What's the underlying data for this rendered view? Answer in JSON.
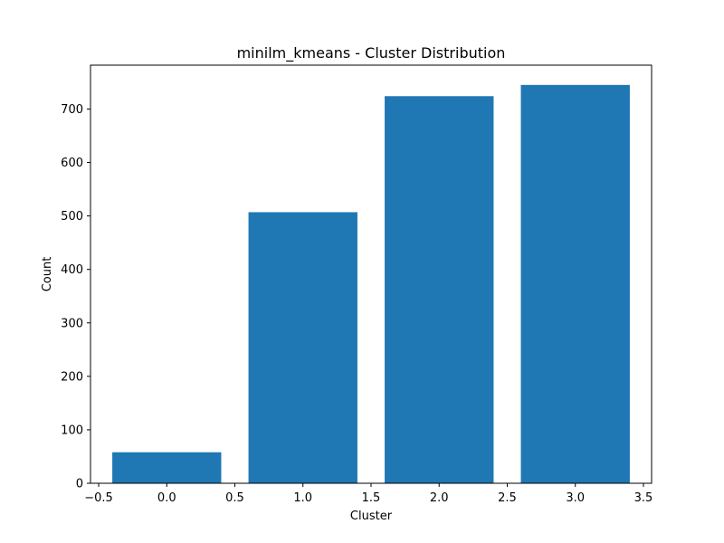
{
  "chart_data": {
    "type": "bar",
    "title": "minilm_kmeans - Cluster Distribution",
    "xlabel": "Cluster",
    "ylabel": "Count",
    "x": [
      0,
      1,
      2,
      3
    ],
    "values": [
      58,
      507,
      724,
      745
    ],
    "bar_width": 0.8,
    "xlim": [
      -0.56,
      3.56
    ],
    "ylim": [
      0,
      782
    ],
    "xticks": [
      -0.5,
      0.0,
      0.5,
      1.0,
      1.5,
      2.0,
      2.5,
      3.0,
      3.5
    ],
    "xtick_labels": [
      "−0.5",
      "0.0",
      "0.5",
      "1.0",
      "1.5",
      "2.0",
      "2.5",
      "3.0",
      "3.5"
    ],
    "yticks": [
      0,
      100,
      200,
      300,
      400,
      500,
      600,
      700
    ],
    "ytick_labels": [
      "0",
      "100",
      "200",
      "300",
      "400",
      "500",
      "600",
      "700"
    ],
    "bar_color": "#1f77b4",
    "grid": false,
    "legend": "none"
  }
}
